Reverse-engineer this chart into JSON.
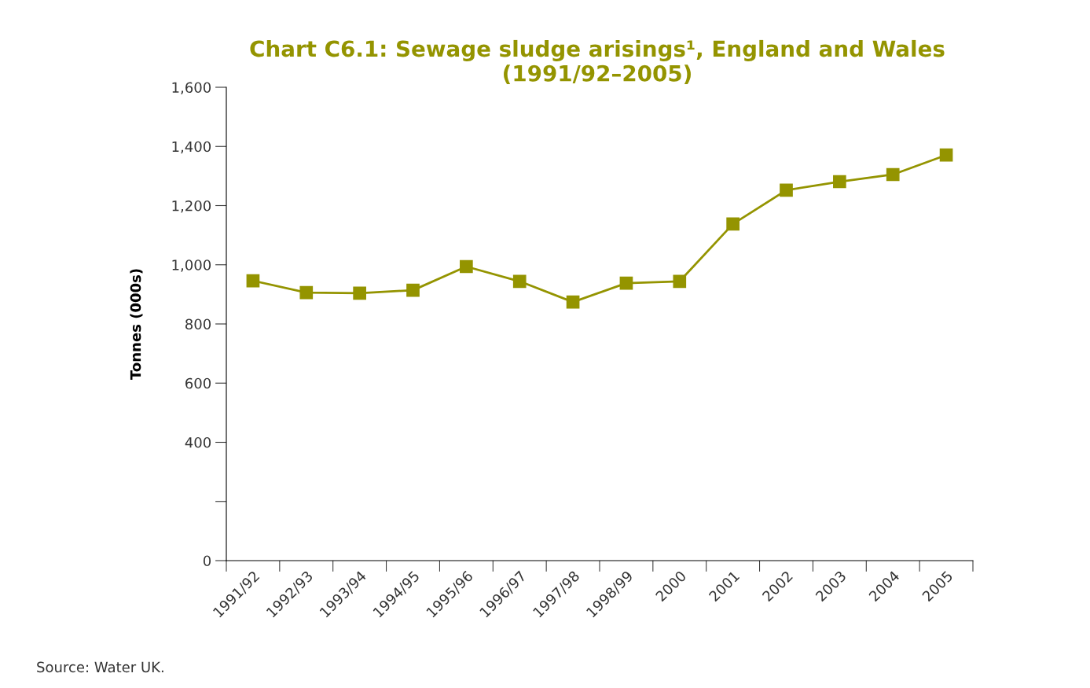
{
  "chart_data": {
    "type": "line",
    "title": "Chart C6.1: Sewage sludge arisings¹, England and Wales\n(1991/92–2005)",
    "ylabel": "Tonnes (000s)",
    "categories": [
      "1991/92",
      "1992/93",
      "1993/94",
      "1994/95",
      "1995/96",
      "1996/97",
      "1997/98",
      "1998/99",
      "2000",
      "2001",
      "2002",
      "2003",
      "2004",
      "2005"
    ],
    "series": [
      {
        "color": "#949400",
        "values": [
          946,
          906,
          904,
          914,
          994,
          944,
          874,
          938,
          944,
          1138,
          1252,
          1281,
          1305,
          1371
        ]
      }
    ],
    "ylim": [
      0,
      1600
    ],
    "yticks": [
      0,
      {
        "value": 200,
        "label": null
      },
      400,
      600,
      800,
      {
        "value": 1000,
        "label": "1,000"
      },
      {
        "value": 1200,
        "label": "1,200"
      },
      {
        "value": 1400,
        "label": "1,400"
      },
      {
        "value": 1600,
        "label": "1,600"
      }
    ],
    "marker": "square",
    "line_style": "solid",
    "grid": false,
    "legend": false,
    "annotations": [
      "Source: Water UK."
    ]
  }
}
